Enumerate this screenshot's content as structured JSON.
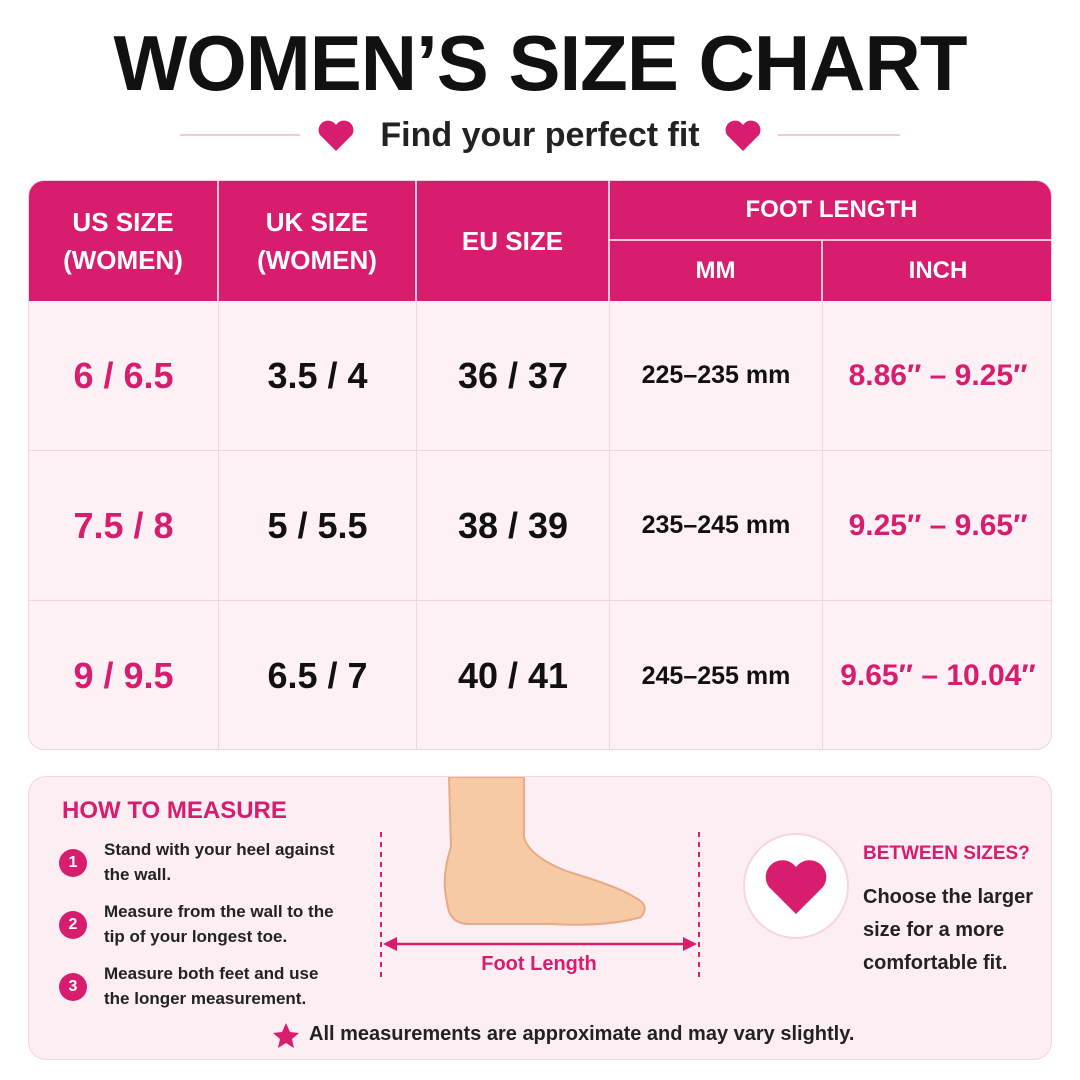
{
  "header": {
    "title": "WOMEN’S SIZE CHART",
    "subtitle": "Find your perfect fit"
  },
  "table": {
    "headers": [
      "US SIZE (WOMEN)",
      "UK SIZE (WOMEN)",
      "EU SIZE",
      "FOOT LENGTH",
      "MM",
      "INCH"
    ],
    "rows": [
      [
        "6 / 6.5",
        "3.5 / 4",
        "36 / 37",
        "225–235 mm",
        "8.86″ – 9.25″"
      ],
      [
        "7.5 / 8",
        "5 / 5.5",
        "38 / 39",
        "235–245 mm",
        "9.25″ – 9.65″"
      ],
      [
        "9 / 9.5",
        "6.5 / 7",
        "40 / 41",
        "245–255 mm",
        "9.65″ – 10.04″"
      ]
    ]
  },
  "measure": {
    "title": "HOW TO MEASURE",
    "steps": [
      {
        "number": "1",
        "text": "Stand with your heel against the wall."
      },
      {
        "number": "2",
        "text": "Measure from the wall to the tip of your longest toe."
      },
      {
        "number": "3",
        "text": "Measure both feet and use the longer measurement."
      }
    ],
    "figure_label": "Foot Length"
  },
  "between": {
    "title": "BETWEEN SIZES?",
    "text": "Choose the larger size for a more comfortable fit."
  },
  "note": "All measurements are approximate and may vary slightly."
}
